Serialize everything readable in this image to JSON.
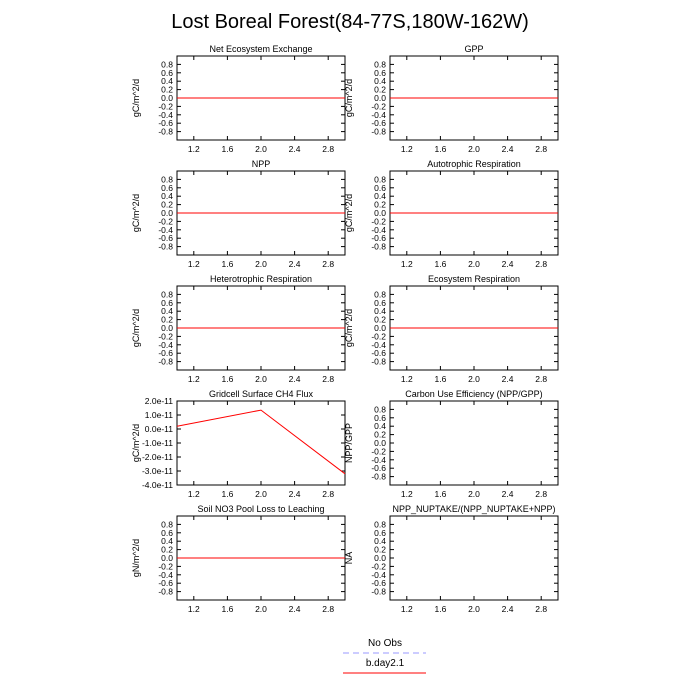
{
  "figure": {
    "title": "Lost Boreal Forest(84-77S,180W-162W)"
  },
  "legend": {
    "entries": [
      {
        "label": "No Obs",
        "color": "#9999ff",
        "dash": true
      },
      {
        "label": "b.day2.1",
        "color": "#ff0000",
        "dash": false
      }
    ]
  },
  "chart_data": [
    {
      "type": "line",
      "title": "Net Ecosystem Exchange",
      "ylabel": "gC/m^2/d",
      "xlim": [
        1.0,
        3.0
      ],
      "ylim": [
        -1.0,
        1.0
      ],
      "xticks": [
        1.2,
        1.6,
        2.0,
        2.4,
        2.8
      ],
      "xtick_labels": [
        "1.2",
        "1.6",
        "2.0",
        "2.4",
        "2.8"
      ],
      "yticks": [
        0.8,
        0.6,
        0.4,
        0.2,
        0.0,
        -0.2,
        -0.4,
        -0.6,
        -0.8
      ],
      "ytick_labels": [
        "0.8",
        "0.6",
        "0.4",
        "0.2",
        "0.0",
        "-0.2",
        "-0.4",
        "-0.6",
        "-0.8"
      ],
      "series": [
        {
          "name": "b.day2.1",
          "color": "#ff0000",
          "x": [
            1,
            2,
            3
          ],
          "y": [
            0,
            0,
            0
          ]
        }
      ]
    },
    {
      "type": "line",
      "title": "GPP",
      "ylabel": "gC/m^2/d",
      "xlim": [
        1.0,
        3.0
      ],
      "ylim": [
        -1.0,
        1.0
      ],
      "xticks": [
        1.2,
        1.6,
        2.0,
        2.4,
        2.8
      ],
      "xtick_labels": [
        "1.2",
        "1.6",
        "2.0",
        "2.4",
        "2.8"
      ],
      "yticks": [
        0.8,
        0.6,
        0.4,
        0.2,
        0.0,
        -0.2,
        -0.4,
        -0.6,
        -0.8
      ],
      "ytick_labels": [
        "0.8",
        "0.6",
        "0.4",
        "0.2",
        "0.0",
        "-0.2",
        "-0.4",
        "-0.6",
        "-0.8"
      ],
      "series": [
        {
          "name": "b.day2.1",
          "color": "#ff0000",
          "x": [
            1,
            2,
            3
          ],
          "y": [
            0,
            0,
            0
          ]
        }
      ]
    },
    {
      "type": "line",
      "title": "NPP",
      "ylabel": "gC/m^2/d",
      "xlim": [
        1.0,
        3.0
      ],
      "ylim": [
        -1.0,
        1.0
      ],
      "xticks": [
        1.2,
        1.6,
        2.0,
        2.4,
        2.8
      ],
      "xtick_labels": [
        "1.2",
        "1.6",
        "2.0",
        "2.4",
        "2.8"
      ],
      "yticks": [
        0.8,
        0.6,
        0.4,
        0.2,
        0.0,
        -0.2,
        -0.4,
        -0.6,
        -0.8
      ],
      "ytick_labels": [
        "0.8",
        "0.6",
        "0.4",
        "0.2",
        "0.0",
        "-0.2",
        "-0.4",
        "-0.6",
        "-0.8"
      ],
      "series": [
        {
          "name": "b.day2.1",
          "color": "#ff0000",
          "x": [
            1,
            2,
            3
          ],
          "y": [
            0,
            0,
            0
          ]
        }
      ]
    },
    {
      "type": "line",
      "title": "Autotrophic Respiration",
      "ylabel": "gC/m^2/d",
      "xlim": [
        1.0,
        3.0
      ],
      "ylim": [
        -1.0,
        1.0
      ],
      "xticks": [
        1.2,
        1.6,
        2.0,
        2.4,
        2.8
      ],
      "xtick_labels": [
        "1.2",
        "1.6",
        "2.0",
        "2.4",
        "2.8"
      ],
      "yticks": [
        0.8,
        0.6,
        0.4,
        0.2,
        0.0,
        -0.2,
        -0.4,
        -0.6,
        -0.8
      ],
      "ytick_labels": [
        "0.8",
        "0.6",
        "0.4",
        "0.2",
        "0.0",
        "-0.2",
        "-0.4",
        "-0.6",
        "-0.8"
      ],
      "series": [
        {
          "name": "b.day2.1",
          "color": "#ff0000",
          "x": [
            1,
            2,
            3
          ],
          "y": [
            0,
            0,
            0
          ]
        }
      ]
    },
    {
      "type": "line",
      "title": "Heterotrophic Respiration",
      "ylabel": "gC/m^2/d",
      "xlim": [
        1.0,
        3.0
      ],
      "ylim": [
        -1.0,
        1.0
      ],
      "xticks": [
        1.2,
        1.6,
        2.0,
        2.4,
        2.8
      ],
      "xtick_labels": [
        "1.2",
        "1.6",
        "2.0",
        "2.4",
        "2.8"
      ],
      "yticks": [
        0.8,
        0.6,
        0.4,
        0.2,
        0.0,
        -0.2,
        -0.4,
        -0.6,
        -0.8
      ],
      "ytick_labels": [
        "0.8",
        "0.6",
        "0.4",
        "0.2",
        "0.0",
        "-0.2",
        "-0.4",
        "-0.6",
        "-0.8"
      ],
      "series": [
        {
          "name": "b.day2.1",
          "color": "#ff0000",
          "x": [
            1,
            2,
            3
          ],
          "y": [
            0,
            0,
            0
          ]
        }
      ]
    },
    {
      "type": "line",
      "title": "Ecosystem Respiration",
      "ylabel": "gC/m^2/d",
      "xlim": [
        1.0,
        3.0
      ],
      "ylim": [
        -1.0,
        1.0
      ],
      "xticks": [
        1.2,
        1.6,
        2.0,
        2.4,
        2.8
      ],
      "xtick_labels": [
        "1.2",
        "1.6",
        "2.0",
        "2.4",
        "2.8"
      ],
      "yticks": [
        0.8,
        0.6,
        0.4,
        0.2,
        0.0,
        -0.2,
        -0.4,
        -0.6,
        -0.8
      ],
      "ytick_labels": [
        "0.8",
        "0.6",
        "0.4",
        "0.2",
        "0.0",
        "-0.2",
        "-0.4",
        "-0.6",
        "-0.8"
      ],
      "series": [
        {
          "name": "b.day2.1",
          "color": "#ff0000",
          "x": [
            1,
            2,
            3
          ],
          "y": [
            0,
            0,
            0
          ]
        }
      ]
    },
    {
      "type": "line",
      "title": "Gridcell Surface CH4 Flux",
      "ylabel": "gC/m^2/d",
      "xlim": [
        1.0,
        3.0
      ],
      "ylim": [
        -4e-11,
        2e-11
      ],
      "xticks": [
        1.2,
        1.6,
        2.0,
        2.4,
        2.8
      ],
      "xtick_labels": [
        "1.2",
        "1.6",
        "2.0",
        "2.4",
        "2.8"
      ],
      "yticks": [
        2e-11,
        1e-11,
        0.0,
        -1e-11,
        -2e-11,
        -3e-11,
        -4e-11
      ],
      "ytick_labels": [
        "2.0e-11",
        "1.0e-11",
        "0.0e-11",
        "-1.0e-11",
        "-2.0e-11",
        "-3.0e-11",
        "-4.0e-11"
      ],
      "series": [
        {
          "name": "b.day2.1",
          "color": "#ff0000",
          "x": [
            1,
            2,
            3
          ],
          "y": [
            2e-12,
            1.35e-11,
            -3.2e-11
          ]
        }
      ]
    },
    {
      "type": "line",
      "title": "Carbon Use Efficiency (NPP/GPP)",
      "ylabel": "NPP/GPP",
      "xlim": [
        1.0,
        3.0
      ],
      "ylim": [
        -1.0,
        1.0
      ],
      "xticks": [
        1.2,
        1.6,
        2.0,
        2.4,
        2.8
      ],
      "xtick_labels": [
        "1.2",
        "1.6",
        "2.0",
        "2.4",
        "2.8"
      ],
      "yticks": [
        0.8,
        0.6,
        0.4,
        0.2,
        0.0,
        -0.2,
        -0.4,
        -0.6,
        -0.8
      ],
      "ytick_labels": [
        "0.8",
        "0.6",
        "0.4",
        "0.2",
        "0.0",
        "-0.2",
        "-0.4",
        "-0.6",
        "-0.8"
      ],
      "series": []
    },
    {
      "type": "line",
      "title": "Soil NO3 Pool Loss to Leaching",
      "ylabel": "gN/m^2/d",
      "xlim": [
        1.0,
        3.0
      ],
      "ylim": [
        -1.0,
        1.0
      ],
      "xticks": [
        1.2,
        1.6,
        2.0,
        2.4,
        2.8
      ],
      "xtick_labels": [
        "1.2",
        "1.6",
        "2.0",
        "2.4",
        "2.8"
      ],
      "yticks": [
        0.8,
        0.6,
        0.4,
        0.2,
        0.0,
        -0.2,
        -0.4,
        -0.6,
        -0.8
      ],
      "ytick_labels": [
        "0.8",
        "0.6",
        "0.4",
        "0.2",
        "0.0",
        "-0.2",
        "-0.4",
        "-0.6",
        "-0.8"
      ],
      "series": [
        {
          "name": "b.day2.1",
          "color": "#ff0000",
          "x": [
            1,
            2,
            3
          ],
          "y": [
            0,
            0,
            0
          ]
        }
      ]
    },
    {
      "type": "line",
      "title": "NPP_NUPTAKE/(NPP_NUPTAKE+NPP)",
      "ylabel": "NA",
      "xlim": [
        1.0,
        3.0
      ],
      "ylim": [
        -1.0,
        1.0
      ],
      "xticks": [
        1.2,
        1.6,
        2.0,
        2.4,
        2.8
      ],
      "xtick_labels": [
        "1.2",
        "1.6",
        "2.0",
        "2.4",
        "2.8"
      ],
      "yticks": [
        0.8,
        0.6,
        0.4,
        0.2,
        0.0,
        -0.2,
        -0.4,
        -0.6,
        -0.8
      ],
      "ytick_labels": [
        "0.8",
        "0.6",
        "0.4",
        "0.2",
        "0.0",
        "-0.2",
        "-0.4",
        "-0.6",
        "-0.8"
      ],
      "series": []
    }
  ]
}
